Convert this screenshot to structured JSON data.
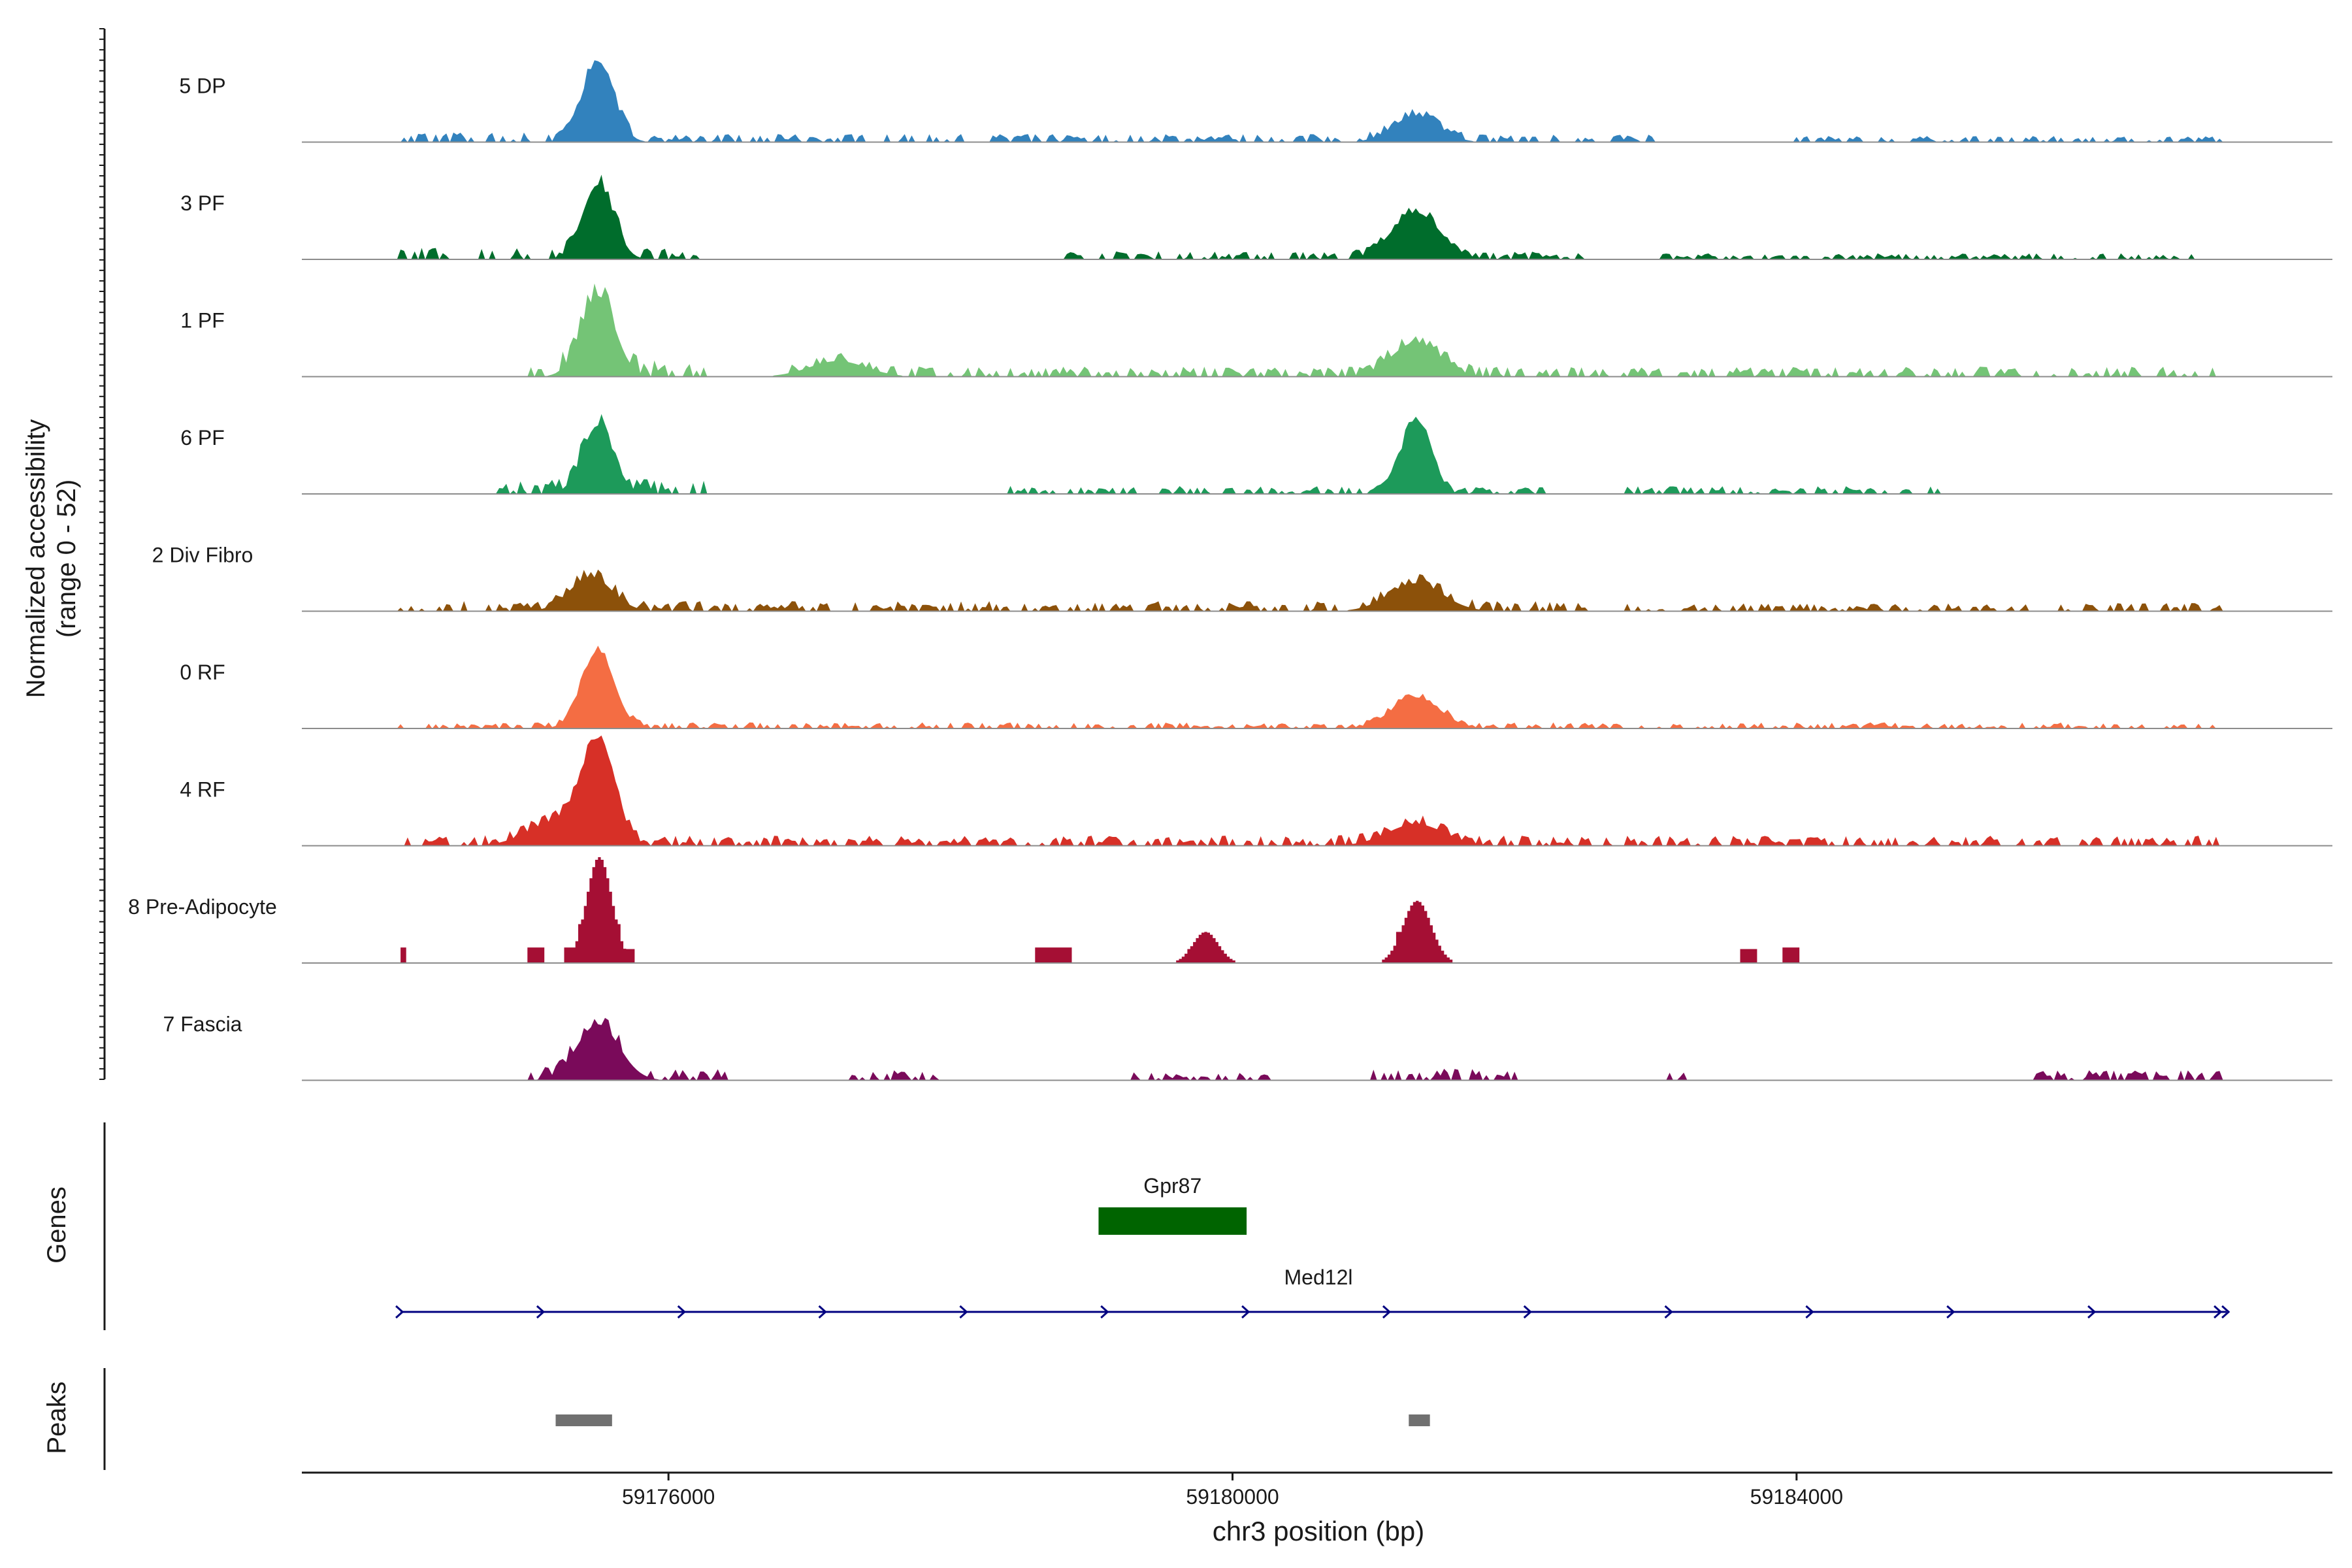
{
  "chart_data": {
    "type": "area",
    "title": "",
    "ylabel": "Normalized accessibility",
    "ylabel_range": "(range 0 - 52)",
    "ylim": [
      0,
      52
    ],
    "xlabel": "chr3 position (bp)",
    "xlim": [
      59173400,
      59187800
    ],
    "x_ticks": [
      59176000,
      59180000,
      59184000
    ],
    "x_tick_labels": [
      "59176000",
      "59180000",
      "59184000"
    ],
    "track_labels": {
      "genes": "Genes",
      "peaks": "Peaks"
    },
    "series": [
      {
        "name": "5 DP",
        "color": "#3282bd",
        "style": "smooth",
        "peaks": [
          [
            59175500,
            52,
            110
          ],
          [
            59181300,
            17,
            160
          ]
        ],
        "noise": [
          [
            59174100,
            59176200,
            5
          ],
          [
            59176200,
            59183000,
            4
          ],
          [
            59184000,
            59187000,
            3
          ]
        ]
      },
      {
        "name": "3 PF",
        "color": "#006d2c",
        "style": "smooth",
        "peaks": [
          [
            59175500,
            48,
            110
          ],
          [
            59181300,
            30,
            170
          ]
        ],
        "noise": [
          [
            59174100,
            59176200,
            6
          ],
          [
            59178800,
            59182500,
            4
          ],
          [
            59183000,
            59186800,
            3
          ]
        ]
      },
      {
        "name": "1 PF",
        "color": "#74c476",
        "style": "smooth",
        "peaks": [
          [
            59175500,
            52,
            120
          ],
          [
            59177200,
            10,
            200
          ],
          [
            59181300,
            22,
            170
          ]
        ],
        "noise": [
          [
            59175000,
            59176300,
            8
          ],
          [
            59176800,
            59187000,
            5
          ]
        ]
      },
      {
        "name": "6 PF",
        "color": "#1d9a5a",
        "style": "smooth",
        "peaks": [
          [
            59175500,
            44,
            110
          ],
          [
            59181300,
            48,
            100
          ]
        ],
        "noise": [
          [
            59174800,
            59176300,
            7
          ],
          [
            59178400,
            59182200,
            4
          ],
          [
            59182800,
            59185000,
            4
          ]
        ]
      },
      {
        "name": "2 Div Fibro",
        "color": "#8c510a",
        "style": "smooth",
        "peaks": [
          [
            59175450,
            22,
            150
          ],
          [
            59181300,
            18,
            190
          ]
        ],
        "noise": [
          [
            59174100,
            59182500,
            5
          ],
          [
            59182800,
            59187000,
            4
          ]
        ]
      },
      {
        "name": "0 RF",
        "color": "#f46d43",
        "style": "smooth",
        "peaks": [
          [
            59175500,
            50,
            115
          ],
          [
            59181300,
            20,
            170
          ]
        ],
        "noise": [
          [
            59174100,
            59187000,
            3
          ]
        ]
      },
      {
        "name": "4 RF",
        "color": "#d73027",
        "style": "smooth",
        "peaks": [
          [
            59175500,
            62,
            120
          ],
          [
            59175200,
            15,
            200
          ],
          [
            59181300,
            14,
            200
          ]
        ],
        "noise": [
          [
            59174100,
            59187000,
            5
          ]
        ]
      },
      {
        "name": "8 Pre-Adipocyte",
        "color": "#a50f34",
        "style": "blocky",
        "peaks": [
          [
            59175500,
            68,
            90
          ],
          [
            59181300,
            40,
            100
          ],
          [
            59179800,
            20,
            90
          ]
        ],
        "blocks": [
          [
            59174100,
            59174130,
            10
          ],
          [
            59175000,
            59175100,
            10
          ],
          [
            59175250,
            59175350,
            10
          ],
          [
            59175350,
            59175650,
            25
          ],
          [
            59175700,
            59175750,
            9
          ],
          [
            59178600,
            59178700,
            10
          ],
          [
            59178720,
            59178850,
            10
          ],
          [
            59179680,
            59179850,
            9
          ],
          [
            59181150,
            59181400,
            20
          ],
          [
            59183600,
            59183700,
            9
          ],
          [
            59183900,
            59184000,
            10
          ]
        ]
      },
      {
        "name": "7 Fascia",
        "color": "#7a0a5a",
        "style": "smooth",
        "peaks": [
          [
            59175500,
            36,
            150
          ]
        ],
        "noise": [
          [
            59175000,
            59176400,
            6
          ],
          [
            59177300,
            59178000,
            5
          ],
          [
            59179300,
            59180300,
            4
          ],
          [
            59181000,
            59182000,
            6
          ],
          [
            59183100,
            59183200,
            4
          ],
          [
            59185700,
            59187000,
            5
          ]
        ]
      }
    ],
    "genes": [
      {
        "name": "Gpr87",
        "start": 59179050,
        "end": 59180100,
        "color": "#006400",
        "kind": "exon"
      },
      {
        "name": "Med12l",
        "start": 59174100,
        "end": 59187050,
        "color": "#000080",
        "kind": "intron-arrows"
      }
    ],
    "peaks_track": [
      {
        "start": 59175200,
        "end": 59175600,
        "color": "#707070"
      },
      {
        "start": 59181250,
        "end": 59181400,
        "color": "#707070"
      }
    ]
  }
}
